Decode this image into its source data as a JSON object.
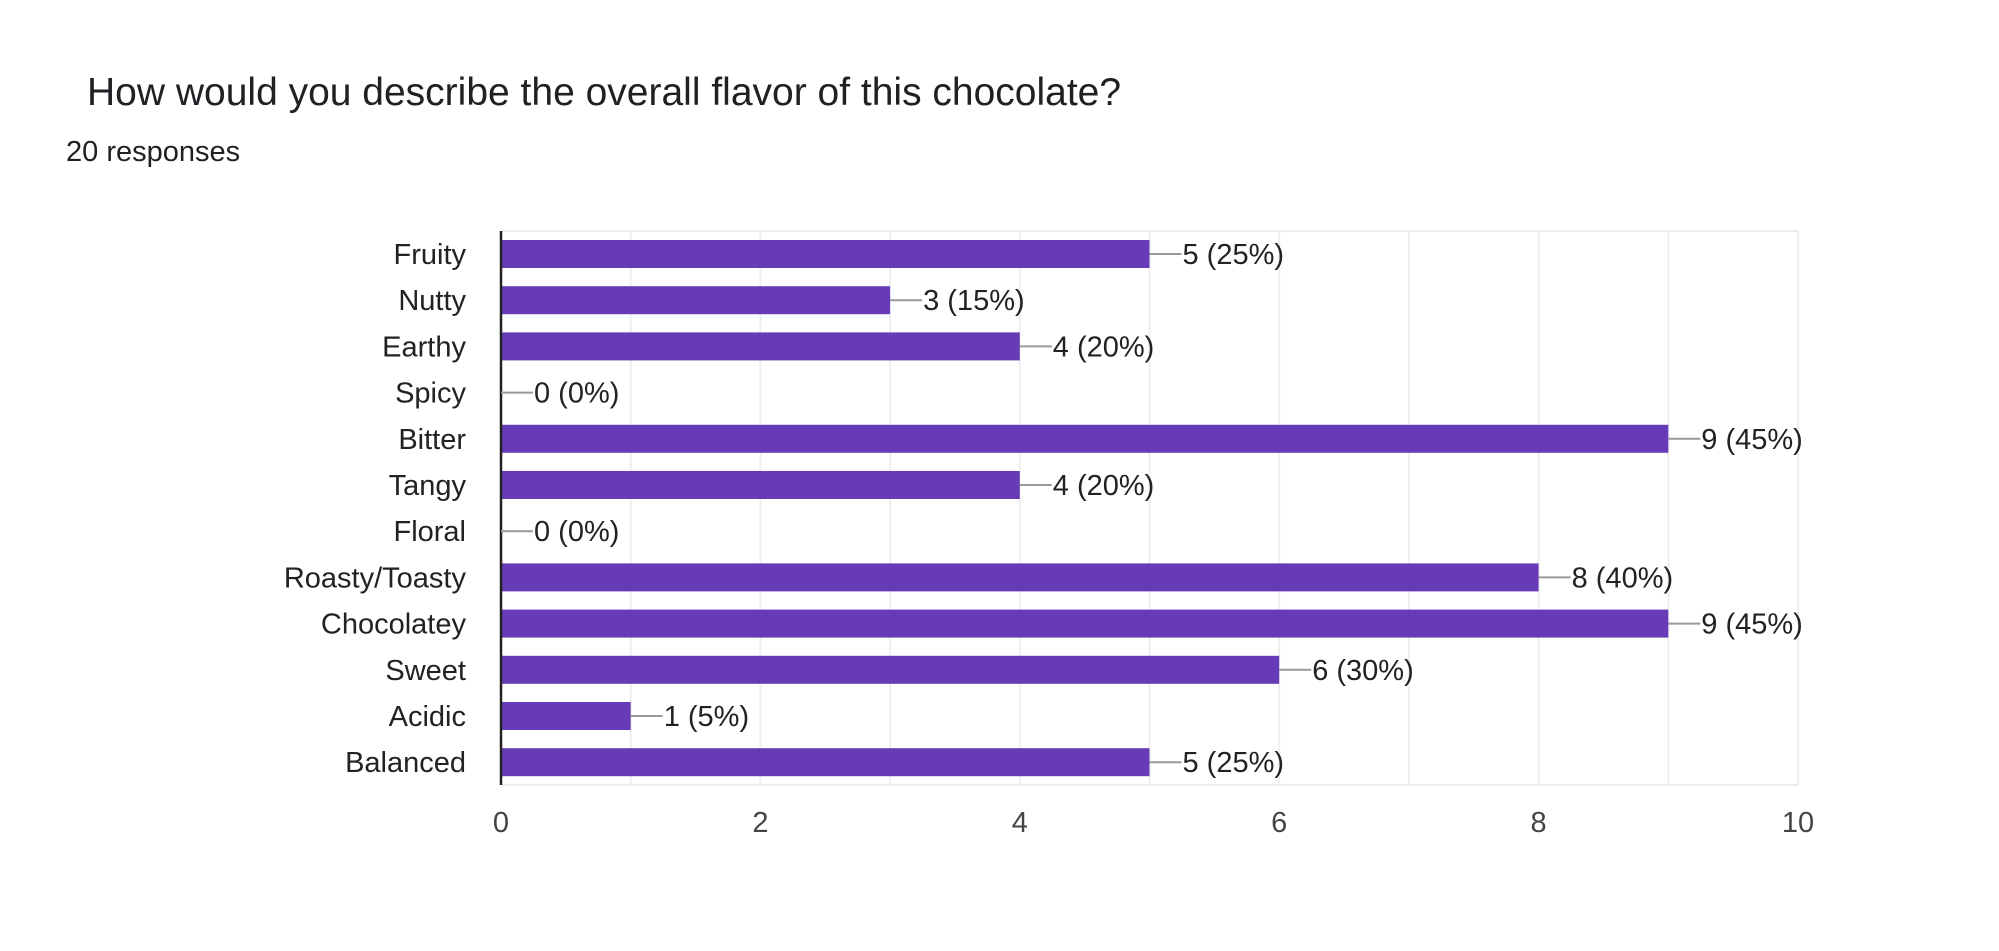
{
  "header": {
    "title": "How would you describe the overall flavor of this chocolate?",
    "responses": "20 responses"
  },
  "colors": {
    "bar": "#673ab7",
    "grid": "#eeeeee",
    "axis": "#222222",
    "leader": "#999999"
  },
  "chart_data": {
    "type": "bar",
    "orientation": "horizontal",
    "title": "How would you describe the overall flavor of this chocolate?",
    "categories": [
      "Fruity",
      "Nutty",
      "Earthy",
      "Spicy",
      "Bitter",
      "Tangy",
      "Floral",
      "Roasty/Toasty",
      "Chocolatey",
      "Sweet",
      "Acidic",
      "Balanced"
    ],
    "values": [
      5,
      3,
      4,
      0,
      9,
      4,
      0,
      8,
      9,
      6,
      1,
      5
    ],
    "value_labels": [
      "5 (25%)",
      "3 (15%)",
      "4 (20%)",
      "0 (0%)",
      "9 (45%)",
      "4 (20%)",
      "0 (0%)",
      "8 (40%)",
      "9 (45%)",
      "6 (30%)",
      "1 (5%)",
      "5 (25%)"
    ],
    "xlim": [
      0,
      10
    ],
    "xticks": [
      0,
      2,
      4,
      6,
      8,
      10
    ],
    "xlabel": "",
    "ylabel": "",
    "grid": true,
    "legend": "none"
  }
}
